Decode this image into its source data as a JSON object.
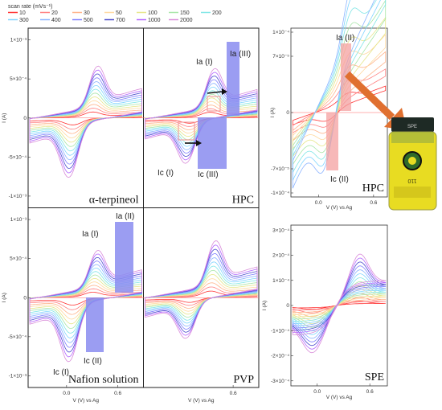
{
  "legend": {
    "title": "scan rate (mVs⁻¹)",
    "entries": [
      {
        "label": "10",
        "color": "#ff3333"
      },
      {
        "label": "20",
        "color": "#ff8080"
      },
      {
        "label": "30",
        "color": "#ffb38a"
      },
      {
        "label": "50",
        "color": "#ffd9a0"
      },
      {
        "label": "100",
        "color": "#e6e68a"
      },
      {
        "label": "150",
        "color": "#a8e6a8"
      },
      {
        "label": "200",
        "color": "#80e6e6"
      },
      {
        "label": "300",
        "color": "#80d4ff"
      },
      {
        "label": "400",
        "color": "#8cb4ff"
      },
      {
        "label": "500",
        "color": "#8080ff"
      },
      {
        "label": "700",
        "color": "#4d4dcc"
      },
      {
        "label": "1000",
        "color": "#b366ff"
      },
      {
        "label": "2000",
        "color": "#d98cd9"
      }
    ]
  },
  "colors": {
    "blue_box": "#8a8cf0",
    "red_box": "#f4a0a0",
    "vial_liquid": "#f0e020",
    "vial_cap": "#222222",
    "arrow": "#e07030"
  },
  "chart_data": [
    {
      "type": "line",
      "panel": "top-left",
      "title": "α-terpineol",
      "ylabel": "I (A)",
      "yticks": [
        "1×10⁻³",
        "5×10⁻⁴",
        "0",
        "-5×10⁻⁴",
        "-1×10⁻³"
      ],
      "ytick_values": [
        0.001,
        0.0005,
        0,
        -0.0005,
        -0.001
      ],
      "ylim": [
        -0.00115,
        0.00115
      ],
      "xlim": [
        -0.45,
        0.9
      ],
      "peaks": {
        "anodic_E": 0.3,
        "anodic_I": 0.0005,
        "cathodic_E": 0.08,
        "cathodic_I": -0.00065
      },
      "annotations": []
    },
    {
      "type": "line",
      "panel": "top-right",
      "title": "HPC",
      "ylim": [
        -0.00115,
        0.00115
      ],
      "xlim": [
        -0.45,
        0.9
      ],
      "peaks": {
        "anodic_E": 0.32,
        "anodic_I": 0.00047,
        "cathodic_E": 0.1,
        "cathodic_I": -0.0005
      },
      "annotations": [
        "Ia (III)",
        "Ia (I)",
        "Ic (I)",
        "Ic (III)"
      ]
    },
    {
      "type": "line",
      "panel": "bottom-left",
      "title": "Nafion solution",
      "ylabel": "I (A)",
      "xlabel": "V (V) vs Ag",
      "yticks": [
        "1×10⁻³",
        "5×10⁻⁴",
        "0",
        "-5×10⁻⁴",
        "-1×10⁻³"
      ],
      "ytick_values": [
        0.001,
        0.0005,
        0,
        -0.0005,
        -0.001
      ],
      "xticks": [
        "0.0",
        "0.6"
      ],
      "xtick_values": [
        0,
        0.6
      ],
      "ylim": [
        -0.00115,
        0.00115
      ],
      "xlim": [
        -0.45,
        0.9
      ],
      "peaks": {
        "anodic_E": 0.3,
        "anodic_I": 0.00045,
        "cathodic_E": 0.08,
        "cathodic_I": -0.0007
      },
      "annotations": [
        "Ia (II)",
        "Ia (I)",
        "Ic (II)",
        "Ic (I)"
      ]
    },
    {
      "type": "line",
      "panel": "bottom-right",
      "title": "PVP",
      "xlabel": "V (V) vs Ag",
      "xticks": [
        "0.6"
      ],
      "xtick_values": [
        0.6
      ],
      "ylim": [
        -0.00115,
        0.00115
      ],
      "xlim": [
        -0.45,
        0.9
      ],
      "peaks": {
        "anodic_E": 0.33,
        "anodic_I": 0.00055,
        "cathodic_E": 0.1,
        "cathodic_I": -0.00045
      },
      "annotations": []
    },
    {
      "type": "line",
      "panel": "inset-HPC",
      "title": "HPC",
      "ylabel": "I (A)",
      "xlabel": "V (V) vs Ag",
      "yticks": [
        "1×10⁻⁴",
        "7×10⁻⁵",
        "0",
        "-7×10⁻⁵",
        "-1×10⁻⁴"
      ],
      "ytick_values": [
        0.0001,
        7e-05,
        0,
        -7e-05,
        -0.0001
      ],
      "xticks": [
        "0.0",
        "0.6"
      ],
      "xtick_values": [
        0,
        0.6
      ],
      "ylim": [
        -0.000105,
        0.000105
      ],
      "xlim": [
        -0.3,
        0.75
      ],
      "annotations": [
        "Ia (II)",
        "Ic (II)"
      ]
    },
    {
      "type": "line",
      "panel": "inset-SPE",
      "title": "SPE",
      "ylabel": "I (A)",
      "xlabel": "V (V) vs Ag",
      "yticks": [
        "3×10⁻⁴",
        "2×10⁻⁴",
        "1×10⁻⁴",
        "0",
        "-1×10⁻⁴",
        "-2×10⁻⁴",
        "-3×10⁻⁴"
      ],
      "ytick_values": [
        0.0003,
        0.0002,
        0.0001,
        0,
        -0.0001,
        -0.0002,
        -0.0003
      ],
      "xticks": [
        "0.0",
        "0.6"
      ],
      "xtick_values": [
        0,
        0.6
      ],
      "ylim": [
        -0.00032,
        0.00032
      ],
      "xlim": [
        -0.3,
        0.8
      ],
      "annotations": []
    }
  ],
  "vial": {
    "cap_label": "SPE",
    "label_text": "110"
  }
}
